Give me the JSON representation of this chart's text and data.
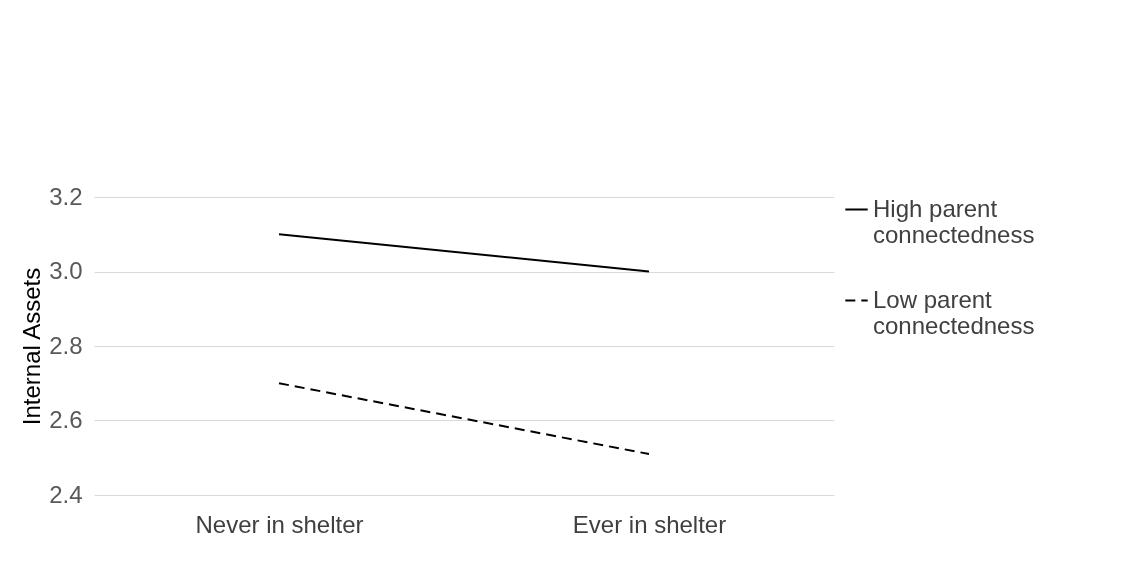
{
  "chart_data": {
    "type": "line",
    "ylabel": "Internal Assets",
    "categories": [
      "Never in shelter",
      "Ever in shelter"
    ],
    "series": [
      {
        "name": "High parent connectedness",
        "color": "#000000",
        "line_style": "solid",
        "values": [
          3.1,
          3.0
        ]
      },
      {
        "name": "Low parent connectedness",
        "color": "#000000",
        "line_style": "dashed",
        "values": [
          2.7,
          2.51
        ]
      }
    ],
    "ylim": [
      2.4,
      3.2
    ],
    "yticks": [
      2.4,
      2.6,
      2.8,
      {
        "value": 3,
        "label": "3.0"
      },
      3.2
    ],
    "grid": "y",
    "legend": "right",
    "marker": "none"
  }
}
